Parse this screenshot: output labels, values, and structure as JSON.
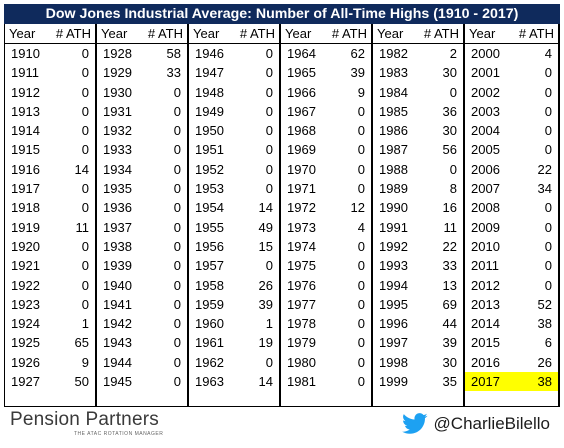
{
  "title": "Dow Jones Industrial Average: Number of All-Time Highs (1910 - 2017)",
  "headers": {
    "year": "Year",
    "ath": "# ATH"
  },
  "columns": [
    {
      "rows": [
        [
          "1910",
          "0"
        ],
        [
          "1911",
          "0"
        ],
        [
          "1912",
          "0"
        ],
        [
          "1913",
          "0"
        ],
        [
          "1914",
          "0"
        ],
        [
          "1915",
          "0"
        ],
        [
          "1916",
          "14"
        ],
        [
          "1917",
          "0"
        ],
        [
          "1918",
          "0"
        ],
        [
          "1919",
          "11"
        ],
        [
          "1920",
          "0"
        ],
        [
          "1921",
          "0"
        ],
        [
          "1922",
          "0"
        ],
        [
          "1923",
          "0"
        ],
        [
          "1924",
          "1"
        ],
        [
          "1925",
          "65"
        ],
        [
          "1926",
          "9"
        ],
        [
          "1927",
          "50"
        ]
      ]
    },
    {
      "rows": [
        [
          "1928",
          "58"
        ],
        [
          "1929",
          "33"
        ],
        [
          "1930",
          "0"
        ],
        [
          "1931",
          "0"
        ],
        [
          "1932",
          "0"
        ],
        [
          "1933",
          "0"
        ],
        [
          "1934",
          "0"
        ],
        [
          "1935",
          "0"
        ],
        [
          "1936",
          "0"
        ],
        [
          "1937",
          "0"
        ],
        [
          "1938",
          "0"
        ],
        [
          "1939",
          "0"
        ],
        [
          "1940",
          "0"
        ],
        [
          "1941",
          "0"
        ],
        [
          "1942",
          "0"
        ],
        [
          "1943",
          "0"
        ],
        [
          "1944",
          "0"
        ],
        [
          "1945",
          "0"
        ]
      ]
    },
    {
      "rows": [
        [
          "1946",
          "0"
        ],
        [
          "1947",
          "0"
        ],
        [
          "1948",
          "0"
        ],
        [
          "1949",
          "0"
        ],
        [
          "1950",
          "0"
        ],
        [
          "1951",
          "0"
        ],
        [
          "1952",
          "0"
        ],
        [
          "1953",
          "0"
        ],
        [
          "1954",
          "14"
        ],
        [
          "1955",
          "49"
        ],
        [
          "1956",
          "15"
        ],
        [
          "1957",
          "0"
        ],
        [
          "1958",
          "26"
        ],
        [
          "1959",
          "39"
        ],
        [
          "1960",
          "1"
        ],
        [
          "1961",
          "19"
        ],
        [
          "1962",
          "0"
        ],
        [
          "1963",
          "14"
        ]
      ]
    },
    {
      "rows": [
        [
          "1964",
          "62"
        ],
        [
          "1965",
          "39"
        ],
        [
          "1966",
          "9"
        ],
        [
          "1967",
          "0"
        ],
        [
          "1968",
          "0"
        ],
        [
          "1969",
          "0"
        ],
        [
          "1970",
          "0"
        ],
        [
          "1971",
          "0"
        ],
        [
          "1972",
          "12"
        ],
        [
          "1973",
          "4"
        ],
        [
          "1974",
          "0"
        ],
        [
          "1975",
          "0"
        ],
        [
          "1976",
          "0"
        ],
        [
          "1977",
          "0"
        ],
        [
          "1978",
          "0"
        ],
        [
          "1979",
          "0"
        ],
        [
          "1980",
          "0"
        ],
        [
          "1981",
          "0"
        ]
      ]
    },
    {
      "rows": [
        [
          "1982",
          "2"
        ],
        [
          "1983",
          "30"
        ],
        [
          "1984",
          "0"
        ],
        [
          "1985",
          "36"
        ],
        [
          "1986",
          "30"
        ],
        [
          "1987",
          "56"
        ],
        [
          "1988",
          "0"
        ],
        [
          "1989",
          "8"
        ],
        [
          "1990",
          "16"
        ],
        [
          "1991",
          "11"
        ],
        [
          "1992",
          "22"
        ],
        [
          "1993",
          "33"
        ],
        [
          "1994",
          "13"
        ],
        [
          "1995",
          "69"
        ],
        [
          "1996",
          "44"
        ],
        [
          "1997",
          "39"
        ],
        [
          "1998",
          "30"
        ],
        [
          "1999",
          "35"
        ]
      ]
    },
    {
      "rows": [
        [
          "2000",
          "4"
        ],
        [
          "2001",
          "0"
        ],
        [
          "2002",
          "0"
        ],
        [
          "2003",
          "0"
        ],
        [
          "2004",
          "0"
        ],
        [
          "2005",
          "0"
        ],
        [
          "2006",
          "22"
        ],
        [
          "2007",
          "34"
        ],
        [
          "2008",
          "0"
        ],
        [
          "2009",
          "0"
        ],
        [
          "2010",
          "0"
        ],
        [
          "2011",
          "0"
        ],
        [
          "2012",
          "0"
        ],
        [
          "2013",
          "52"
        ],
        [
          "2014",
          "38"
        ],
        [
          "2015",
          "6"
        ],
        [
          "2016",
          "26"
        ],
        [
          "2017",
          "38"
        ]
      ]
    }
  ],
  "highlight_year": "2017",
  "highlight_color": "#ffff00",
  "title_bg_color": "#0f2a5c",
  "footer": {
    "brand": "Pension Partners",
    "brand_tagline": "THE ATAC ROTATION MANAGER",
    "twitter_icon": "twitter-bird-icon",
    "twitter_handle": "@CharlieBilello",
    "twitter_color": "#1da1f2"
  }
}
